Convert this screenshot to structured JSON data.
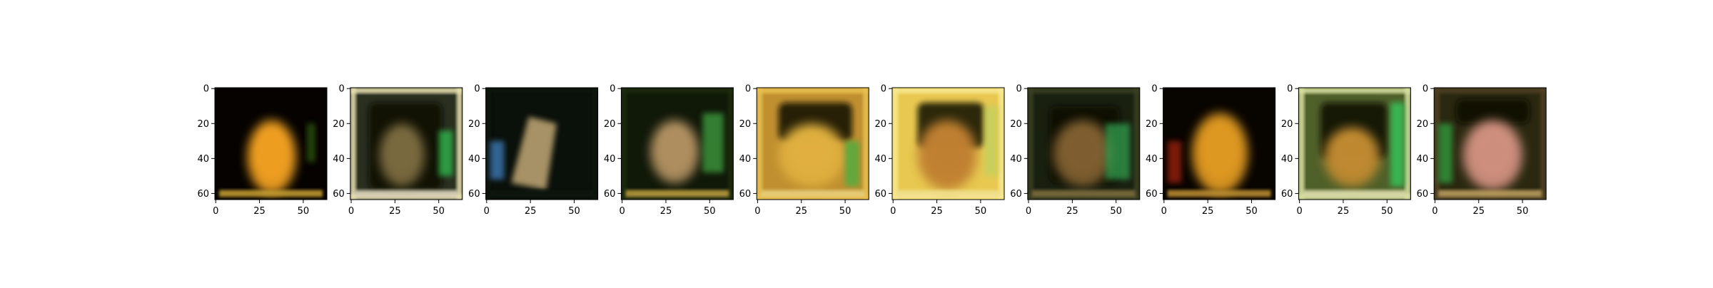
{
  "chart_data": {
    "type": "image-grid",
    "title": "",
    "panel_count": 10,
    "image_size": [
      64,
      64
    ],
    "xlim": [
      0,
      63
    ],
    "ylim": [
      63,
      0
    ],
    "y_inverted": true,
    "x_ticks": [
      {
        "value": 0,
        "label": "0"
      },
      {
        "value": 25,
        "label": "25"
      },
      {
        "value": 50,
        "label": "50"
      }
    ],
    "y_ticks": [
      {
        "value": 0,
        "label": "0"
      },
      {
        "value": 20,
        "label": "20"
      },
      {
        "value": 40,
        "label": "40"
      },
      {
        "value": 60,
        "label": "60"
      }
    ],
    "panels": [
      {
        "bg": "#050200",
        "frame": "none",
        "frame_color": "#000000",
        "subject": "#f0a020",
        "subject_shape": "blob",
        "subject_rect": [
          18,
          18,
          46,
          60
        ],
        "dark": "none",
        "dark_rect": [
          0,
          0,
          0,
          0
        ],
        "accent": "#2d5a10",
        "accent_rect": [
          52,
          20,
          57,
          42
        ],
        "bottom": "#c8a030"
      },
      {
        "bg": "#2a3020",
        "frame": "bright",
        "frame_color": "#e8e0b0",
        "subject": "#7a6a40",
        "subject_shape": "blob",
        "subject_rect": [
          16,
          20,
          42,
          56
        ],
        "dark": "inner",
        "dark_rect": [
          10,
          8,
          52,
          58
        ],
        "accent": "#30c050",
        "accent_rect": [
          50,
          24,
          58,
          50
        ],
        "bottom": "#e0d8c0"
      },
      {
        "bg": "#0a100a",
        "frame": "dark",
        "frame_color": "#101810",
        "subject": "#b8a070",
        "subject_shape": "diagonal",
        "subject_rect": [
          14,
          16,
          40,
          58
        ],
        "dark": "none",
        "dark_rect": [
          0,
          0,
          0,
          0
        ],
        "accent": "#4080c0",
        "accent_rect": [
          2,
          30,
          10,
          52
        ],
        "bottom": "#101810"
      },
      {
        "bg": "#101808",
        "frame": "dark",
        "frame_color": "#1a2a10",
        "subject": "#b09060",
        "subject_shape": "blob",
        "subject_rect": [
          16,
          18,
          44,
          54
        ],
        "dark": "none",
        "dark_rect": [
          0,
          0,
          0,
          0
        ],
        "accent": "#40a040",
        "accent_rect": [
          46,
          14,
          58,
          48
        ],
        "bottom": "#c0a040"
      },
      {
        "bg": "#c09030",
        "frame": "bright",
        "frame_color": "#e8c050",
        "subject": "#e0b040",
        "subject_shape": "blob",
        "subject_rect": [
          12,
          20,
          50,
          56
        ],
        "dark": "top",
        "dark_rect": [
          12,
          8,
          54,
          30
        ],
        "accent": "#40b040",
        "accent_rect": [
          50,
          30,
          58,
          56
        ],
        "bottom": "#e8d080"
      },
      {
        "bg": "#e8c850",
        "frame": "bright",
        "frame_color": "#f8e890",
        "subject": "#c08030",
        "subject_shape": "blob",
        "subject_rect": [
          14,
          18,
          48,
          58
        ],
        "dark": "top",
        "dark_rect": [
          14,
          8,
          52,
          34
        ],
        "accent": "#c0d060",
        "accent_rect": [
          52,
          10,
          60,
          50
        ],
        "bottom": "#f0e090"
      },
      {
        "bg": "#1a2010",
        "frame": "dark",
        "frame_color": "#3a4020",
        "subject": "#806030",
        "subject_shape": "blob",
        "subject_rect": [
          14,
          18,
          48,
          56
        ],
        "dark": "inner",
        "dark_rect": [
          12,
          10,
          52,
          54
        ],
        "accent": "#30a050",
        "accent_rect": [
          44,
          20,
          58,
          52
        ],
        "bottom": "#807040"
      },
      {
        "bg": "#080400",
        "frame": "none",
        "frame_color": "#000000",
        "subject": "#e09a20",
        "subject_shape": "blob",
        "subject_rect": [
          16,
          14,
          48,
          60
        ],
        "dark": "none",
        "dark_rect": [
          0,
          0,
          0,
          0
        ],
        "accent": "#a02010",
        "accent_rect": [
          2,
          30,
          10,
          54
        ],
        "bottom": "#c09030"
      },
      {
        "bg": "#50602a",
        "frame": "bright",
        "frame_color": "#d8e0a0",
        "subject": "#c08a30",
        "subject_shape": "blob",
        "subject_rect": [
          14,
          22,
          46,
          56
        ],
        "dark": "inner",
        "dark_rect": [
          12,
          8,
          50,
          40
        ],
        "accent": "#30d060",
        "accent_rect": [
          52,
          8,
          60,
          56
        ],
        "bottom": "#e0e0b0"
      },
      {
        "bg": "#2a2810",
        "frame": "dark",
        "frame_color": "#504020",
        "subject": "#d09080",
        "subject_shape": "blob",
        "subject_rect": [
          16,
          18,
          50,
          58
        ],
        "dark": "top",
        "dark_rect": [
          12,
          6,
          54,
          20
        ],
        "accent": "#30a040",
        "accent_rect": [
          2,
          20,
          10,
          54
        ],
        "bottom": "#c0a060"
      }
    ]
  }
}
